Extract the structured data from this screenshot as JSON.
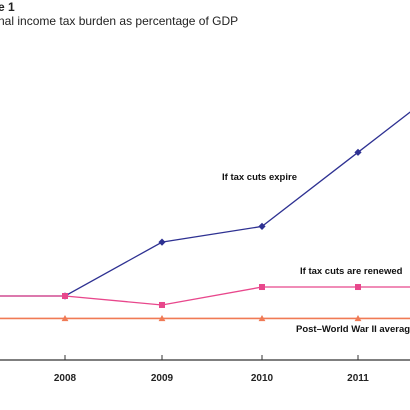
{
  "chart_data": {
    "type": "line",
    "heading": "e 1",
    "title": "nal income tax burden as percentage of GDP",
    "categories": [
      "2008",
      "2009",
      "2010",
      "2011"
    ],
    "series": [
      {
        "name": "If tax cuts expire",
        "color": "#2e3192",
        "marker": "diamond",
        "values": [
          8.1,
          9.3,
          9.65,
          11.3
        ]
      },
      {
        "name": "If tax cuts are renewed",
        "color": "#e8478c",
        "marker": "square",
        "values": [
          8.1,
          7.9,
          8.3,
          8.3
        ]
      },
      {
        "name": "Post–World War II average",
        "color": "#f07a55",
        "marker": "triangle",
        "values": [
          7.6,
          7.6,
          7.6,
          7.6
        ]
      }
    ],
    "annotations": [
      "If tax cuts expire",
      "If tax cuts are renewed",
      "Post–World War II average"
    ],
    "grid": false,
    "legend": "none"
  }
}
